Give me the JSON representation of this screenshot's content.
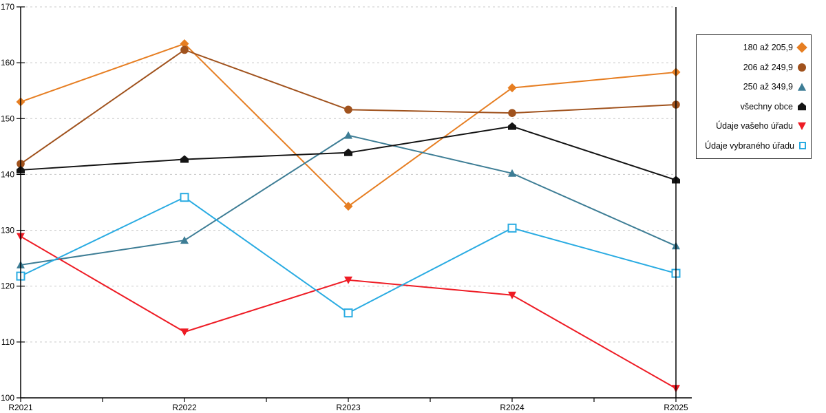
{
  "chart_data": {
    "type": "line",
    "title": "",
    "xlabel": "",
    "ylabel": "",
    "x_categories": [
      "R2021",
      "R2022",
      "R2023",
      "R2024",
      "R2025"
    ],
    "ylim": [
      100,
      170
    ],
    "ytick_step": 10,
    "y_tick_labels": [
      "100",
      "110",
      "120",
      "130",
      "140",
      "150",
      "160",
      "170"
    ],
    "grid": "horizontal-dashed",
    "legend_position": "right-outside",
    "series": [
      {
        "name": "180 až 205,9",
        "marker": "diamond",
        "color": "#E67E22",
        "values": [
          153.0,
          163.4,
          134.3,
          155.5,
          158.3
        ]
      },
      {
        "name": "206 až 249,9",
        "marker": "circle",
        "color": "#A0521D",
        "values": [
          141.9,
          162.3,
          151.6,
          151.0,
          152.5
        ]
      },
      {
        "name": "250 až 349,9",
        "marker": "triangle-up",
        "color": "#3D7D95",
        "values": [
          123.8,
          128.2,
          147.0,
          140.2,
          127.2
        ]
      },
      {
        "name": "všechny obce",
        "marker": "pentagon",
        "color": "#141414",
        "values": [
          140.8,
          142.7,
          143.9,
          148.6,
          139.0
        ]
      },
      {
        "name": "Údaje vašeho úřadu",
        "marker": "triangle-down",
        "color": "#EE1C25",
        "values": [
          128.9,
          111.8,
          121.1,
          118.4,
          101.7
        ]
      },
      {
        "name": "Údaje vybraného úřadu",
        "marker": "square-open",
        "color": "#29ABE2",
        "values": [
          121.8,
          135.9,
          115.2,
          130.4,
          122.3
        ]
      }
    ]
  },
  "style_colors": {
    "grid": "#C8C8C8",
    "axis": "#000000",
    "background": "#FFFFFF",
    "legend_border": "#2B2B2B"
  }
}
